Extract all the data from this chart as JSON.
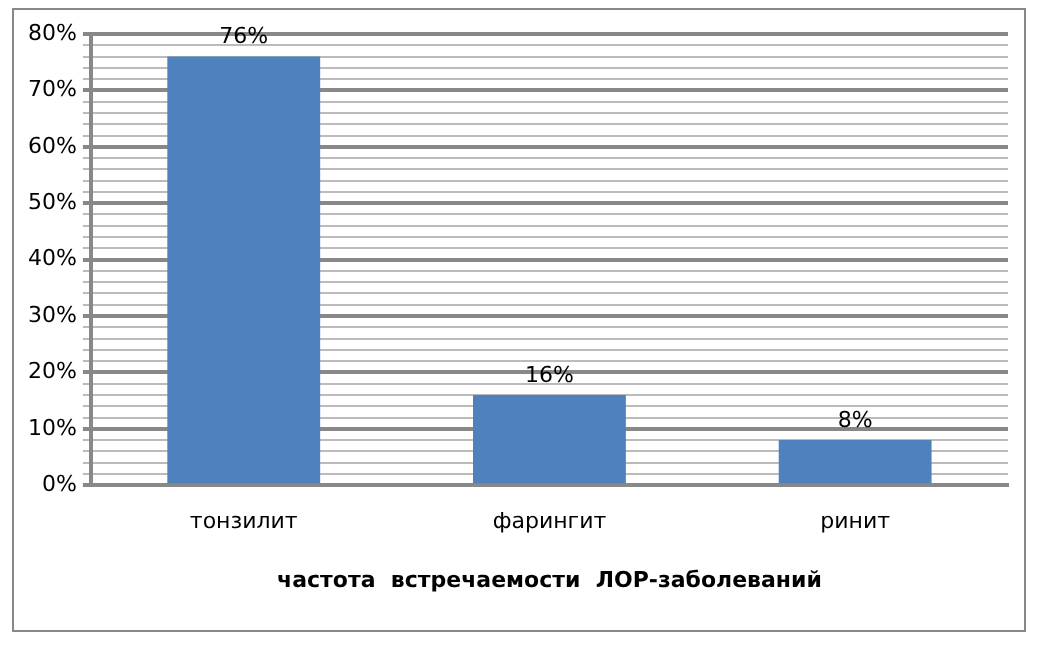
{
  "chart_data": {
    "type": "bar",
    "xlabel": "частота  встречаемости  ЛОР-заболеваний",
    "categories": [
      "тонзилит",
      "фарингит",
      "ринит"
    ],
    "values": [
      76,
      16,
      8
    ],
    "value_labels": [
      "76%",
      "16%",
      "8%"
    ],
    "color": "#4f81bd",
    "ylim": [
      0,
      80
    ],
    "yticks": [
      {
        "value": 0,
        "label": "0%"
      },
      {
        "value": 2,
        "label": null
      },
      {
        "value": 4,
        "label": null
      },
      {
        "value": 6,
        "label": null
      },
      {
        "value": 8,
        "label": null
      },
      {
        "value": 10,
        "label": "10%"
      },
      {
        "value": 12,
        "label": null
      },
      {
        "value": 14,
        "label": null
      },
      {
        "value": 16,
        "label": null
      },
      {
        "value": 18,
        "label": null
      },
      {
        "value": 20,
        "label": "20%"
      },
      {
        "value": 22,
        "label": null
      },
      {
        "value": 24,
        "label": null
      },
      {
        "value": 26,
        "label": null
      },
      {
        "value": 28,
        "label": null
      },
      {
        "value": 30,
        "label": "30%"
      },
      {
        "value": 32,
        "label": null
      },
      {
        "value": 34,
        "label": null
      },
      {
        "value": 36,
        "label": null
      },
      {
        "value": 38,
        "label": null
      },
      {
        "value": 40,
        "label": "40%"
      },
      {
        "value": 42,
        "label": null
      },
      {
        "value": 44,
        "label": null
      },
      {
        "value": 46,
        "label": null
      },
      {
        "value": 48,
        "label": null
      },
      {
        "value": 50,
        "label": "50%"
      },
      {
        "value": 52,
        "label": null
      },
      {
        "value": 54,
        "label": null
      },
      {
        "value": 56,
        "label": null
      },
      {
        "value": 58,
        "label": null
      },
      {
        "value": 60,
        "label": "60%"
      },
      {
        "value": 62,
        "label": null
      },
      {
        "value": 64,
        "label": null
      },
      {
        "value": 66,
        "label": null
      },
      {
        "value": 68,
        "label": null
      },
      {
        "value": 70,
        "label": "70%"
      },
      {
        "value": 72,
        "label": null
      },
      {
        "value": 74,
        "label": null
      },
      {
        "value": 76,
        "label": null
      },
      {
        "value": 78,
        "label": null
      },
      {
        "value": 80,
        "label": "80%"
      }
    ],
    "grid": "y",
    "legend": false
  }
}
